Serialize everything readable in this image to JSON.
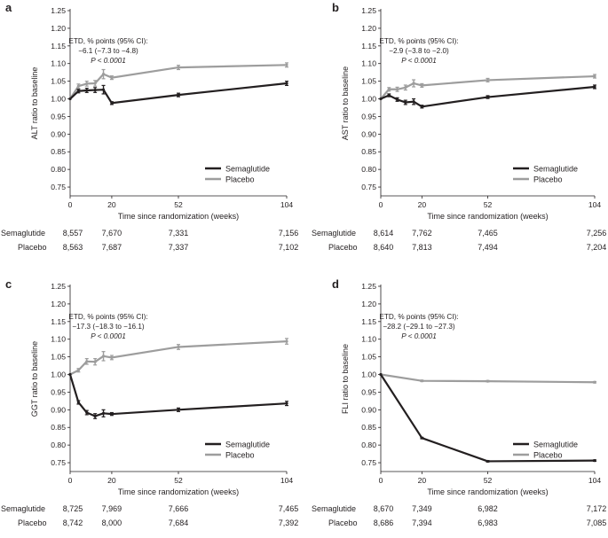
{
  "figure": {
    "colors": {
      "semaglutide": "#231f20",
      "placebo": "#9d9d9d",
      "axis": "#231f20"
    }
  },
  "chart_data": [
    {
      "panel": "a",
      "type": "line",
      "ylabel": "ALT ratio to baseline",
      "xlabel": "Time since randomization (weeks)",
      "ylim": [
        0.725,
        1.25
      ],
      "yticks": [
        "0.75",
        "0.80",
        "0.85",
        "0.90",
        "0.95",
        "1.00",
        "1.05",
        "1.10",
        "1.15",
        "1.20",
        "1.25"
      ],
      "xlim": [
        0,
        104
      ],
      "xticks": [
        0,
        20,
        52,
        104
      ],
      "grid": false,
      "legend_position": "bottom-right",
      "annotation": [
        "ETD, % points (95% CI):",
        "−6.1 (−7.3 to −4.8)",
        "P < 0.0001"
      ],
      "series": [
        {
          "name": "Semaglutide",
          "color_key": "semaglutide",
          "x": [
            0,
            4,
            8,
            12,
            16,
            20,
            52,
            104
          ],
          "y": [
            1.0,
            1.022,
            1.024,
            1.025,
            1.026,
            0.988,
            1.011,
            1.044
          ],
          "err": [
            0,
            0.005,
            0.006,
            0.007,
            0.012,
            0.004,
            0.005,
            0.006
          ]
        },
        {
          "name": "Placebo",
          "color_key": "placebo",
          "x": [
            0,
            4,
            8,
            12,
            16,
            20,
            52,
            104
          ],
          "y": [
            1.0,
            1.036,
            1.043,
            1.044,
            1.07,
            1.06,
            1.089,
            1.096
          ],
          "err": [
            0,
            0.006,
            0.007,
            0.008,
            0.013,
            0.005,
            0.006,
            0.006
          ]
        }
      ],
      "n_at_risk": {
        "x": [
          0,
          20,
          52,
          104
        ],
        "rows": [
          {
            "label": "Semaglutide",
            "values": [
              "8,557",
              "7,670",
              "7,331",
              "7,156"
            ]
          },
          {
            "label": "Placebo",
            "values": [
              "8,563",
              "7,687",
              "7,337",
              "7,102"
            ]
          }
        ]
      }
    },
    {
      "panel": "b",
      "type": "line",
      "ylabel": "AST ratio to baseline",
      "xlabel": "Time since randomization (weeks)",
      "ylim": [
        0.725,
        1.25
      ],
      "yticks": [
        "0.75",
        "0.80",
        "0.85",
        "0.90",
        "0.95",
        "1.00",
        "1.05",
        "1.10",
        "1.15",
        "1.20",
        "1.25"
      ],
      "xlim": [
        0,
        104
      ],
      "xticks": [
        0,
        20,
        52,
        104
      ],
      "grid": false,
      "legend_position": "bottom-right",
      "annotation": [
        "ETD, % points (95% CI):",
        "−2.9 (−3.8 to −2.0)",
        "P < 0.0001"
      ],
      "series": [
        {
          "name": "Semaglutide",
          "color_key": "semaglutide",
          "x": [
            0,
            4,
            8,
            12,
            16,
            20,
            52,
            104
          ],
          "y": [
            1.0,
            1.01,
            0.998,
            0.99,
            0.992,
            0.978,
            1.005,
            1.034
          ],
          "err": [
            0,
            0.004,
            0.005,
            0.006,
            0.008,
            0.004,
            0.004,
            0.005
          ]
        },
        {
          "name": "Placebo",
          "color_key": "placebo",
          "x": [
            0,
            4,
            8,
            12,
            16,
            20,
            52,
            104
          ],
          "y": [
            1.0,
            1.027,
            1.027,
            1.032,
            1.044,
            1.038,
            1.053,
            1.064
          ],
          "err": [
            0,
            0.005,
            0.006,
            0.007,
            0.01,
            0.005,
            0.005,
            0.005
          ]
        }
      ],
      "n_at_risk": {
        "x": [
          0,
          20,
          52,
          104
        ],
        "rows": [
          {
            "label": "Semaglutide",
            "values": [
              "8,614",
              "7,762",
              "7,465",
              "7,256"
            ]
          },
          {
            "label": "Placebo",
            "values": [
              "8,640",
              "7,813",
              "7,494",
              "7,204"
            ]
          }
        ]
      }
    },
    {
      "panel": "c",
      "type": "line",
      "ylabel": "GGT ratio to baseline",
      "xlabel": "Time since randomization (weeks)",
      "ylim": [
        0.725,
        1.25
      ],
      "yticks": [
        "0.75",
        "0.80",
        "0.85",
        "0.90",
        "0.95",
        "1.00",
        "1.05",
        "1.10",
        "1.15",
        "1.20",
        "1.25"
      ],
      "xlim": [
        0,
        104
      ],
      "xticks": [
        0,
        20,
        52,
        104
      ],
      "grid": false,
      "legend_position": "bottom-right",
      "annotation": [
        "ETD, % points (95% CI):",
        "−17.3 (−18.3 to −16.1)",
        "P < 0.0001"
      ],
      "series": [
        {
          "name": "Semaglutide",
          "color_key": "semaglutide",
          "x": [
            0,
            4,
            8,
            12,
            16,
            20,
            52,
            104
          ],
          "y": [
            1.0,
            0.921,
            0.892,
            0.882,
            0.89,
            0.888,
            0.9,
            0.918
          ],
          "err": [
            0,
            0.005,
            0.006,
            0.007,
            0.01,
            0.004,
            0.005,
            0.006
          ]
        },
        {
          "name": "Placebo",
          "color_key": "placebo",
          "x": [
            0,
            4,
            8,
            12,
            16,
            20,
            52,
            104
          ],
          "y": [
            1.0,
            1.012,
            1.037,
            1.036,
            1.052,
            1.048,
            1.078,
            1.094
          ],
          "err": [
            0,
            0.005,
            0.008,
            0.009,
            0.013,
            0.006,
            0.007,
            0.008
          ]
        }
      ],
      "n_at_risk": {
        "x": [
          0,
          20,
          52,
          104
        ],
        "rows": [
          {
            "label": "Semaglutide",
            "values": [
              "8,725",
              "7,969",
              "7,666",
              "7,465"
            ]
          },
          {
            "label": "Placebo",
            "values": [
              "8,742",
              "8,000",
              "7,684",
              "7,392"
            ]
          }
        ]
      }
    },
    {
      "panel": "d",
      "type": "line",
      "ylabel": "FLI ratio to baseline",
      "xlabel": "Time since randomization (weeks)",
      "ylim": [
        0.725,
        1.25
      ],
      "yticks": [
        "0.75",
        "0.80",
        "0.85",
        "0.90",
        "0.95",
        "1.00",
        "1.05",
        "1.10",
        "1.15",
        "1.20",
        "1.25"
      ],
      "xlim": [
        0,
        104
      ],
      "xticks": [
        0,
        20,
        52,
        104
      ],
      "grid": false,
      "legend_position": "bottom-right",
      "annotation": [
        "ETD, % points (95% CI):",
        "−28.2 (−29.1 to −27.3)",
        "P < 0.0001"
      ],
      "series": [
        {
          "name": "Semaglutide",
          "color_key": "semaglutide",
          "x": [
            0,
            20,
            52,
            104
          ],
          "y": [
            1.0,
            0.82,
            0.754,
            0.756
          ],
          "err": [
            0,
            0.002,
            0.002,
            0.002
          ]
        },
        {
          "name": "Placebo",
          "color_key": "placebo",
          "x": [
            0,
            20,
            52,
            104
          ],
          "y": [
            1.0,
            0.982,
            0.981,
            0.978
          ],
          "err": [
            0,
            0.002,
            0.002,
            0.002
          ]
        }
      ],
      "n_at_risk": {
        "x": [
          0,
          20,
          52,
          104
        ],
        "rows": [
          {
            "label": "Semaglutide",
            "values": [
              "8,670",
              "7,349",
              "6,982",
              "7,172"
            ]
          },
          {
            "label": "Placebo",
            "values": [
              "8,686",
              "7,394",
              "6,983",
              "7,085"
            ]
          }
        ]
      }
    }
  ]
}
